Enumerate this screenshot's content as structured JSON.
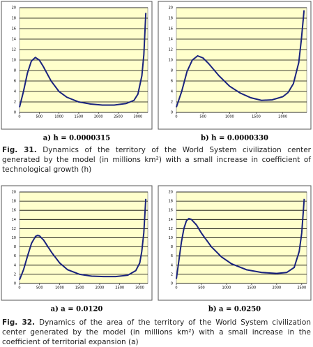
{
  "chart_data": [
    {
      "type": "line",
      "caption": "a) h = 0.0000315",
      "color": "#1a237e",
      "grid": true,
      "x": [
        0,
        100,
        200,
        300,
        400,
        500,
        600,
        800,
        1000,
        1200,
        1500,
        1800,
        2100,
        2400,
        2700,
        2900,
        3000,
        3100,
        3150,
        3200
      ],
      "values": [
        1,
        4,
        7.5,
        9.8,
        10.5,
        10,
        8.8,
        6,
        4,
        2.9,
        2,
        1.6,
        1.4,
        1.4,
        1.7,
        2.3,
        3.5,
        7,
        11,
        19
      ],
      "xlim": [
        0,
        3250
      ],
      "xticks": [
        0,
        500,
        1000,
        1500,
        2000,
        2500,
        3000
      ],
      "ylim": [
        0,
        20
      ],
      "yticks": [
        0,
        2,
        4,
        6,
        8,
        10,
        12,
        14,
        16,
        18,
        20
      ]
    },
    {
      "type": "line",
      "caption": "b) h = 0.0000330",
      "color": "#1a237e",
      "grid": true,
      "x": [
        0,
        100,
        200,
        300,
        400,
        500,
        600,
        800,
        1000,
        1200,
        1400,
        1600,
        1800,
        2000,
        2100,
        2200,
        2300,
        2350,
        2400
      ],
      "values": [
        1,
        4,
        7.8,
        10,
        10.8,
        10.4,
        9.4,
        7,
        5,
        3.7,
        2.8,
        2.3,
        2.4,
        3,
        3.8,
        5.5,
        9.5,
        14,
        19.5
      ],
      "xlim": [
        0,
        2450
      ],
      "xticks": [
        0,
        500,
        1000,
        1500,
        2000
      ],
      "ylim": [
        0,
        20
      ],
      "yticks": [
        0,
        2,
        4,
        6,
        8,
        10,
        12,
        14,
        16,
        18,
        20
      ]
    },
    {
      "type": "line",
      "caption": "a) a = 0.0120",
      "color": "#1a237e",
      "grid": true,
      "x": [
        0,
        100,
        200,
        300,
        400,
        450,
        500,
        600,
        800,
        1000,
        1200,
        1500,
        1800,
        2100,
        2400,
        2700,
        2900,
        3000,
        3050,
        3100,
        3150
      ],
      "values": [
        0.8,
        3,
        6,
        8.8,
        10.3,
        10.5,
        10.4,
        9.5,
        6.8,
        4.5,
        3,
        2,
        1.6,
        1.5,
        1.5,
        1.8,
        2.8,
        4.5,
        7,
        11,
        18.5
      ],
      "xlim": [
        0,
        3200
      ],
      "xticks": [
        0,
        500,
        1000,
        1500,
        2000,
        2500,
        3000
      ],
      "ylim": [
        0,
        20
      ],
      "yticks": [
        0,
        2,
        4,
        6,
        8,
        10,
        12,
        14,
        16,
        18,
        20
      ]
    },
    {
      "type": "line",
      "caption": "b) a = 0.0250",
      "color": "#1a237e",
      "grid": true,
      "x": [
        0,
        50,
        100,
        150,
        200,
        250,
        300,
        400,
        500,
        700,
        900,
        1100,
        1400,
        1700,
        2000,
        2200,
        2350,
        2450,
        2500,
        2550
      ],
      "values": [
        1,
        5,
        9,
        12,
        13.7,
        14.2,
        14,
        12.8,
        11,
        8,
        5.8,
        4.3,
        3,
        2.4,
        2.2,
        2.4,
        3.5,
        7,
        11,
        18.5
      ],
      "xlim": [
        0,
        2600
      ],
      "xticks": [
        0,
        500,
        1000,
        1500,
        2000,
        2500
      ],
      "ylim": [
        0,
        20
      ],
      "yticks": [
        0,
        2,
        4,
        6,
        8,
        10,
        12,
        14,
        16,
        18,
        20
      ]
    }
  ],
  "figures": [
    {
      "label": "Fig. 31.",
      "text": "Dynamics of the territory of the World System civilization center generated by the model (in millions km²) with a small increase in coefficient of technological growth (h)"
    },
    {
      "label": "Fig. 32.",
      "text": "Dynamics of the area of the territory of the World System civilization center generated by the model (in millions km²) with a small increase in the coefficient of territorial expansion (a)"
    }
  ]
}
